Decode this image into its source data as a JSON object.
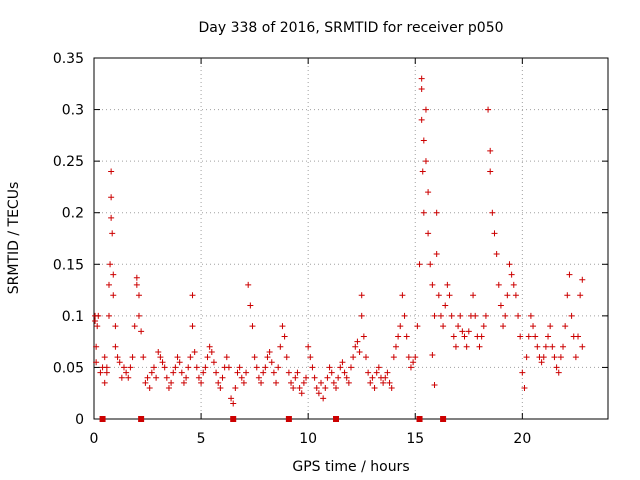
{
  "chart_data": {
    "type": "scatter",
    "title": "Day 338 of 2016, SRMTID for receiver p050",
    "xlabel": "GPS time / hours",
    "ylabel": "SRMTID / TECUs",
    "xlim": [
      0,
      24
    ],
    "ylim": [
      0,
      0.35
    ],
    "x_ticks": [
      0,
      5,
      10,
      15,
      20
    ],
    "x_tick_labels": [
      "0",
      "5",
      "10",
      "15",
      "20"
    ],
    "y_ticks": [
      0,
      0.05,
      0.1,
      0.15,
      0.2,
      0.25,
      0.3,
      0.35
    ],
    "y_tick_labels": [
      "0",
      "0.05",
      "0.1",
      "0.15",
      "0.2",
      "0.25",
      "0.3",
      "0.35"
    ],
    "grid": true,
    "marker": "+",
    "series_color": "#cc0000",
    "series": [
      {
        "name": "SRMTID",
        "points": [
          [
            0.05,
            0.095
          ],
          [
            0.05,
            0.1
          ],
          [
            0.1,
            0.07
          ],
          [
            0.1,
            0.055
          ],
          [
            0.15,
            0.09
          ],
          [
            0.2,
            0.1
          ],
          [
            0.3,
            0.045
          ],
          [
            0.4,
            0.05
          ],
          [
            0.5,
            0.035
          ],
          [
            0.5,
            0.06
          ],
          [
            0.6,
            0.05
          ],
          [
            0.6,
            0.045
          ],
          [
            0.7,
            0.1
          ],
          [
            0.7,
            0.13
          ],
          [
            0.75,
            0.15
          ],
          [
            0.8,
            0.24
          ],
          [
            0.8,
            0.215
          ],
          [
            0.8,
            0.195
          ],
          [
            0.85,
            0.18
          ],
          [
            0.9,
            0.14
          ],
          [
            0.9,
            0.12
          ],
          [
            1.0,
            0.09
          ],
          [
            1.0,
            0.07
          ],
          [
            1.1,
            0.06
          ],
          [
            1.2,
            0.055
          ],
          [
            1.3,
            0.04
          ],
          [
            1.4,
            0.05
          ],
          [
            1.5,
            0.045
          ],
          [
            1.6,
            0.04
          ],
          [
            1.7,
            0.05
          ],
          [
            1.8,
            0.06
          ],
          [
            1.9,
            0.09
          ],
          [
            2.0,
            0.13
          ],
          [
            2.0,
            0.137
          ],
          [
            2.1,
            0.12
          ],
          [
            2.1,
            0.1
          ],
          [
            2.2,
            0.085
          ],
          [
            2.3,
            0.06
          ],
          [
            2.4,
            0.035
          ],
          [
            2.5,
            0.04
          ],
          [
            2.6,
            0.03
          ],
          [
            2.7,
            0.045
          ],
          [
            2.8,
            0.05
          ],
          [
            2.9,
            0.04
          ],
          [
            3.0,
            0.065
          ],
          [
            3.1,
            0.06
          ],
          [
            3.2,
            0.055
          ],
          [
            3.3,
            0.05
          ],
          [
            3.4,
            0.04
          ],
          [
            3.5,
            0.03
          ],
          [
            3.6,
            0.035
          ],
          [
            3.7,
            0.045
          ],
          [
            3.8,
            0.05
          ],
          [
            3.9,
            0.06
          ],
          [
            4.0,
            0.055
          ],
          [
            4.1,
            0.045
          ],
          [
            4.2,
            0.035
          ],
          [
            4.3,
            0.04
          ],
          [
            4.4,
            0.05
          ],
          [
            4.5,
            0.06
          ],
          [
            4.6,
            0.12
          ],
          [
            4.6,
            0.09
          ],
          [
            4.7,
            0.065
          ],
          [
            4.8,
            0.05
          ],
          [
            4.9,
            0.04
          ],
          [
            5.0,
            0.035
          ],
          [
            5.1,
            0.045
          ],
          [
            5.2,
            0.05
          ],
          [
            5.3,
            0.06
          ],
          [
            5.4,
            0.07
          ],
          [
            5.5,
            0.065
          ],
          [
            5.6,
            0.055
          ],
          [
            5.7,
            0.045
          ],
          [
            5.8,
            0.035
          ],
          [
            5.9,
            0.03
          ],
          [
            6.0,
            0.04
          ],
          [
            6.1,
            0.05
          ],
          [
            6.2,
            0.06
          ],
          [
            6.3,
            0.05
          ],
          [
            6.4,
            0.02
          ],
          [
            6.5,
            0.015
          ],
          [
            6.6,
            0.03
          ],
          [
            6.7,
            0.045
          ],
          [
            6.8,
            0.05
          ],
          [
            6.9,
            0.04
          ],
          [
            7.0,
            0.035
          ],
          [
            7.1,
            0.045
          ],
          [
            7.2,
            0.13
          ],
          [
            7.3,
            0.11
          ],
          [
            7.4,
            0.09
          ],
          [
            7.5,
            0.06
          ],
          [
            7.6,
            0.05
          ],
          [
            7.7,
            0.04
          ],
          [
            7.8,
            0.035
          ],
          [
            7.9,
            0.045
          ],
          [
            8.0,
            0.05
          ],
          [
            8.1,
            0.06
          ],
          [
            8.2,
            0.065
          ],
          [
            8.3,
            0.055
          ],
          [
            8.4,
            0.045
          ],
          [
            8.5,
            0.035
          ],
          [
            8.6,
            0.05
          ],
          [
            8.7,
            0.07
          ],
          [
            8.8,
            0.09
          ],
          [
            8.9,
            0.08
          ],
          [
            9.0,
            0.06
          ],
          [
            9.1,
            0.045
          ],
          [
            9.2,
            0.035
          ],
          [
            9.3,
            0.03
          ],
          [
            9.4,
            0.04
          ],
          [
            9.5,
            0.045
          ],
          [
            9.6,
            0.03
          ],
          [
            9.7,
            0.025
          ],
          [
            9.8,
            0.035
          ],
          [
            9.9,
            0.04
          ],
          [
            10.0,
            0.07
          ],
          [
            10.1,
            0.06
          ],
          [
            10.2,
            0.05
          ],
          [
            10.3,
            0.04
          ],
          [
            10.4,
            0.03
          ],
          [
            10.5,
            0.025
          ],
          [
            10.6,
            0.035
          ],
          [
            10.7,
            0.02
          ],
          [
            10.8,
            0.03
          ],
          [
            10.9,
            0.04
          ],
          [
            11.0,
            0.05
          ],
          [
            11.1,
            0.045
          ],
          [
            11.2,
            0.035
          ],
          [
            11.3,
            0.03
          ],
          [
            11.4,
            0.04
          ],
          [
            11.5,
            0.05
          ],
          [
            11.6,
            0.055
          ],
          [
            11.7,
            0.045
          ],
          [
            11.8,
            0.04
          ],
          [
            11.9,
            0.035
          ],
          [
            12.0,
            0.05
          ],
          [
            12.1,
            0.06
          ],
          [
            12.2,
            0.07
          ],
          [
            12.3,
            0.075
          ],
          [
            12.4,
            0.065
          ],
          [
            12.5,
            0.12
          ],
          [
            12.5,
            0.1
          ],
          [
            12.6,
            0.08
          ],
          [
            12.7,
            0.06
          ],
          [
            12.8,
            0.045
          ],
          [
            12.9,
            0.035
          ],
          [
            13.0,
            0.04
          ],
          [
            13.1,
            0.03
          ],
          [
            13.2,
            0.045
          ],
          [
            13.3,
            0.05
          ],
          [
            13.4,
            0.04
          ],
          [
            13.5,
            0.035
          ],
          [
            13.6,
            0.04
          ],
          [
            13.7,
            0.045
          ],
          [
            13.8,
            0.035
          ],
          [
            13.9,
            0.03
          ],
          [
            14.0,
            0.06
          ],
          [
            14.1,
            0.07
          ],
          [
            14.2,
            0.08
          ],
          [
            14.3,
            0.09
          ],
          [
            14.4,
            0.12
          ],
          [
            14.5,
            0.1
          ],
          [
            14.6,
            0.08
          ],
          [
            14.7,
            0.06
          ],
          [
            14.8,
            0.05
          ],
          [
            14.9,
            0.055
          ],
          [
            15.0,
            0.06
          ],
          [
            15.1,
            0.09
          ],
          [
            15.2,
            0.15
          ],
          [
            15.3,
            0.33
          ],
          [
            15.3,
            0.32
          ],
          [
            15.3,
            0.29
          ],
          [
            15.35,
            0.24
          ],
          [
            15.4,
            0.27
          ],
          [
            15.4,
            0.2
          ],
          [
            15.5,
            0.3
          ],
          [
            15.5,
            0.25
          ],
          [
            15.6,
            0.22
          ],
          [
            15.6,
            0.18
          ],
          [
            15.7,
            0.15
          ],
          [
            15.8,
            0.13
          ],
          [
            15.8,
            0.062
          ],
          [
            15.9,
            0.1
          ],
          [
            15.9,
            0.033
          ],
          [
            16.0,
            0.2
          ],
          [
            16.0,
            0.16
          ],
          [
            16.1,
            0.12
          ],
          [
            16.2,
            0.1
          ],
          [
            16.3,
            0.09
          ],
          [
            16.4,
            0.11
          ],
          [
            16.5,
            0.13
          ],
          [
            16.6,
            0.12
          ],
          [
            16.7,
            0.1
          ],
          [
            16.8,
            0.08
          ],
          [
            16.9,
            0.07
          ],
          [
            17.0,
            0.09
          ],
          [
            17.1,
            0.1
          ],
          [
            17.2,
            0.085
          ],
          [
            17.3,
            0.08
          ],
          [
            17.4,
            0.07
          ],
          [
            17.5,
            0.085
          ],
          [
            17.6,
            0.1
          ],
          [
            17.7,
            0.12
          ],
          [
            17.8,
            0.1
          ],
          [
            17.9,
            0.08
          ],
          [
            18.0,
            0.07
          ],
          [
            18.1,
            0.08
          ],
          [
            18.2,
            0.09
          ],
          [
            18.3,
            0.1
          ],
          [
            18.4,
            0.3
          ],
          [
            18.5,
            0.26
          ],
          [
            18.5,
            0.24
          ],
          [
            18.6,
            0.2
          ],
          [
            18.7,
            0.18
          ],
          [
            18.8,
            0.16
          ],
          [
            18.9,
            0.13
          ],
          [
            19.0,
            0.11
          ],
          [
            19.1,
            0.09
          ],
          [
            19.2,
            0.1
          ],
          [
            19.3,
            0.12
          ],
          [
            19.4,
            0.15
          ],
          [
            19.5,
            0.14
          ],
          [
            19.6,
            0.13
          ],
          [
            19.7,
            0.12
          ],
          [
            19.8,
            0.1
          ],
          [
            19.9,
            0.08
          ],
          [
            20.0,
            0.045
          ],
          [
            20.1,
            0.03
          ],
          [
            20.2,
            0.06
          ],
          [
            20.3,
            0.08
          ],
          [
            20.4,
            0.1
          ],
          [
            20.5,
            0.09
          ],
          [
            20.6,
            0.08
          ],
          [
            20.7,
            0.07
          ],
          [
            20.8,
            0.06
          ],
          [
            20.9,
            0.055
          ],
          [
            21.0,
            0.06
          ],
          [
            21.1,
            0.07
          ],
          [
            21.2,
            0.08
          ],
          [
            21.3,
            0.09
          ],
          [
            21.4,
            0.07
          ],
          [
            21.5,
            0.06
          ],
          [
            21.6,
            0.05
          ],
          [
            21.7,
            0.045
          ],
          [
            21.8,
            0.06
          ],
          [
            21.9,
            0.07
          ],
          [
            22.0,
            0.09
          ],
          [
            22.1,
            0.12
          ],
          [
            22.2,
            0.14
          ],
          [
            22.3,
            0.1
          ],
          [
            22.4,
            0.08
          ],
          [
            22.5,
            0.06
          ],
          [
            22.6,
            0.08
          ],
          [
            22.7,
            0.12
          ],
          [
            22.8,
            0.135
          ],
          [
            22.8,
            0.07
          ]
        ]
      }
    ],
    "axis_markers_x": [
      0.4,
      2.2,
      6.5,
      9.1,
      11.3,
      15.2,
      16.3
    ],
    "axis_markers_y": 0
  }
}
